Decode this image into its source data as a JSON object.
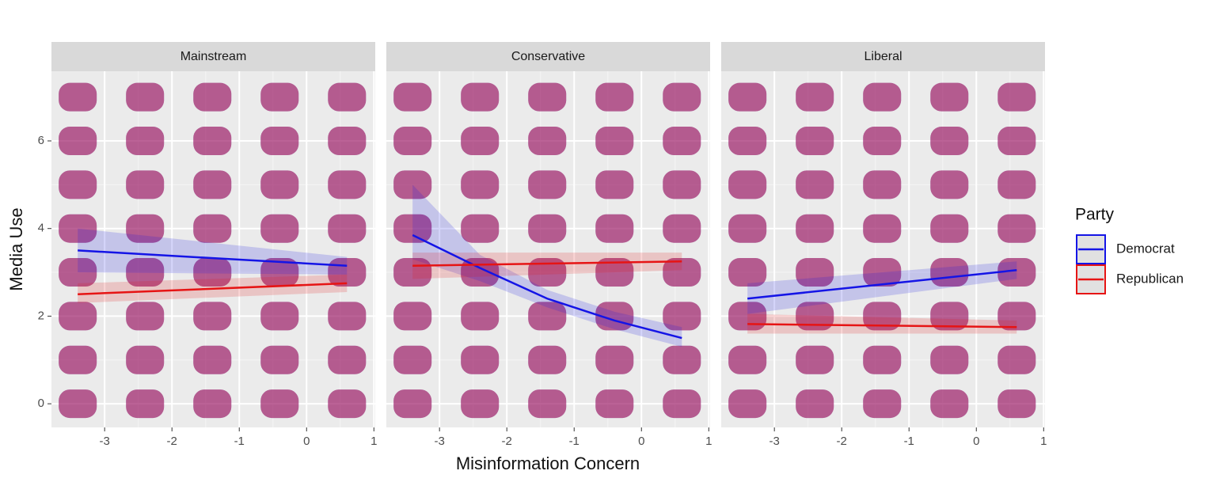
{
  "x_label": "Misinformation Concern",
  "y_label": "Media Use",
  "legend_title": "Party",
  "chart_data": [
    {
      "type": "scatter",
      "title": "Mainstream",
      "xlim": [
        -3.79,
        1.02
      ],
      "ylim": [
        -0.54,
        7.59
      ],
      "xticks": [
        -3,
        -2,
        -1,
        0,
        1
      ],
      "yticks": [
        0,
        2,
        4,
        6
      ],
      "grid": true,
      "x": [
        -3.4,
        -3.4,
        -3.4,
        -3.4,
        -3.4,
        -3.4,
        -3.4,
        -3.4,
        -2.4,
        -2.4,
        -2.4,
        -2.4,
        -2.4,
        -2.4,
        -2.4,
        -2.4,
        -1.4,
        -1.4,
        -1.4,
        -1.4,
        -1.4,
        -1.4,
        -1.4,
        -1.4,
        -0.4,
        -0.4,
        -0.4,
        -0.4,
        -0.4,
        -0.4,
        -0.4,
        -0.4,
        0.6,
        0.6,
        0.6,
        0.6,
        0.6,
        0.6,
        0.6,
        0.6
      ],
      "series": [
        {
          "name": "Democrat",
          "color": "#1414e6",
          "values": [
            0,
            1,
            2,
            3,
            4,
            5,
            6,
            7,
            0,
            1,
            2,
            3,
            4,
            5,
            6,
            7,
            0,
            1,
            2,
            3,
            4,
            5,
            6,
            7,
            0,
            1,
            2,
            3,
            4,
            5,
            6,
            7,
            0,
            1,
            2,
            3,
            4,
            5,
            6,
            7
          ],
          "fit": {
            "x": [
              -3.4,
              0.6
            ],
            "values": [
              3.5,
              3.15
            ],
            "lower": [
              3.0,
              2.95
            ],
            "upper": [
              4.0,
              3.35
            ]
          }
        },
        {
          "name": "Republican",
          "color": "#e61414",
          "values": [
            0,
            1,
            2,
            3,
            4,
            5,
            6,
            7,
            0,
            1,
            2,
            3,
            4,
            5,
            6,
            7,
            0,
            1,
            2,
            3,
            4,
            5,
            6,
            7,
            0,
            1,
            2,
            3,
            4,
            5,
            6,
            7,
            0,
            1,
            2,
            3,
            4,
            5,
            6,
            7
          ],
          "fit": {
            "x": [
              -3.4,
              0.6
            ],
            "values": [
              2.5,
              2.75
            ],
            "lower": [
              2.3,
              2.55
            ],
            "upper": [
              2.75,
              2.95
            ]
          }
        }
      ]
    },
    {
      "type": "scatter",
      "title": "Conservative",
      "xlim": [
        -3.79,
        1.02
      ],
      "ylim": [
        -0.54,
        7.59
      ],
      "xticks": [
        -3,
        -2,
        -1,
        0,
        1
      ],
      "grid": true,
      "x": [
        -3.4,
        -3.4,
        -3.4,
        -3.4,
        -3.4,
        -3.4,
        -3.4,
        -3.4,
        -2.4,
        -2.4,
        -2.4,
        -2.4,
        -2.4,
        -2.4,
        -2.4,
        -2.4,
        -1.4,
        -1.4,
        -1.4,
        -1.4,
        -1.4,
        -1.4,
        -1.4,
        -1.4,
        -0.4,
        -0.4,
        -0.4,
        -0.4,
        -0.4,
        -0.4,
        -0.4,
        -0.4,
        0.6,
        0.6,
        0.6,
        0.6,
        0.6,
        0.6,
        0.6,
        0.6
      ],
      "series": [
        {
          "name": "Democrat",
          "color": "#1414e6",
          "values": [
            0,
            1,
            2,
            3,
            4,
            5,
            6,
            7,
            0,
            1,
            2,
            3,
            4,
            5,
            6,
            7,
            0,
            1,
            2,
            3,
            4,
            5,
            6,
            7,
            0,
            1,
            2,
            3,
            4,
            5,
            6,
            7,
            0,
            1,
            2,
            3,
            4,
            5,
            6,
            7
          ],
          "fit": {
            "x": [
              -3.4,
              -2.4,
              -1.4,
              -0.4,
              0.6
            ],
            "values": [
              3.85,
              3.1,
              2.4,
              1.9,
              1.5
            ],
            "lower": [
              3.3,
              2.8,
              2.2,
              1.7,
              1.3
            ],
            "upper": [
              5.0,
              3.4,
              2.6,
              2.1,
              1.75
            ]
          }
        },
        {
          "name": "Republican",
          "color": "#e61414",
          "values": [
            0,
            1,
            2,
            3,
            4,
            5,
            6,
            7,
            0,
            1,
            2,
            3,
            4,
            5,
            6,
            7,
            0,
            1,
            2,
            3,
            4,
            5,
            6,
            7,
            0,
            1,
            2,
            3,
            4,
            5,
            6,
            7,
            0,
            1,
            2,
            3,
            4,
            5,
            6,
            7
          ],
          "fit": {
            "x": [
              -3.4,
              0.6
            ],
            "values": [
              3.15,
              3.25
            ],
            "lower": [
              2.85,
              3.05
            ],
            "upper": [
              3.45,
              3.45
            ]
          }
        }
      ]
    },
    {
      "type": "scatter",
      "title": "Liberal",
      "xlim": [
        -3.79,
        1.02
      ],
      "ylim": [
        -0.54,
        7.59
      ],
      "xticks": [
        -3,
        -2,
        -1,
        0,
        1
      ],
      "grid": true,
      "x": [
        -3.4,
        -3.4,
        -3.4,
        -3.4,
        -3.4,
        -3.4,
        -3.4,
        -3.4,
        -2.4,
        -2.4,
        -2.4,
        -2.4,
        -2.4,
        -2.4,
        -2.4,
        -2.4,
        -1.4,
        -1.4,
        -1.4,
        -1.4,
        -1.4,
        -1.4,
        -1.4,
        -1.4,
        -0.4,
        -0.4,
        -0.4,
        -0.4,
        -0.4,
        -0.4,
        -0.4,
        -0.4,
        0.6,
        0.6,
        0.6,
        0.6,
        0.6,
        0.6,
        0.6,
        0.6
      ],
      "series": [
        {
          "name": "Democrat",
          "color": "#1414e6",
          "values": [
            0,
            1,
            2,
            3,
            4,
            5,
            6,
            7,
            0,
            1,
            2,
            3,
            4,
            5,
            6,
            7,
            0,
            1,
            2,
            3,
            4,
            5,
            6,
            7,
            0,
            1,
            2,
            3,
            4,
            5,
            6,
            7,
            0,
            1,
            2,
            3,
            4,
            5,
            6,
            7
          ],
          "fit": {
            "x": [
              -3.4,
              0.6
            ],
            "values": [
              2.4,
              3.05
            ],
            "lower": [
              2.05,
              2.85
            ],
            "upper": [
              2.75,
              3.25
            ]
          }
        },
        {
          "name": "Republican",
          "color": "#e61414",
          "values": [
            0,
            1,
            2,
            3,
            4,
            5,
            6,
            7,
            0,
            1,
            2,
            3,
            4,
            5,
            6,
            7,
            0,
            1,
            2,
            3,
            4,
            5,
            6,
            7,
            0,
            1,
            2,
            3,
            4,
            5,
            6,
            7,
            0,
            1,
            2,
            3,
            4,
            5,
            6,
            7
          ],
          "fit": {
            "x": [
              -3.4,
              0.6
            ],
            "values": [
              1.82,
              1.75
            ],
            "lower": [
              1.6,
              1.6
            ],
            "upper": [
              2.05,
              1.9
            ]
          }
        }
      ]
    }
  ]
}
